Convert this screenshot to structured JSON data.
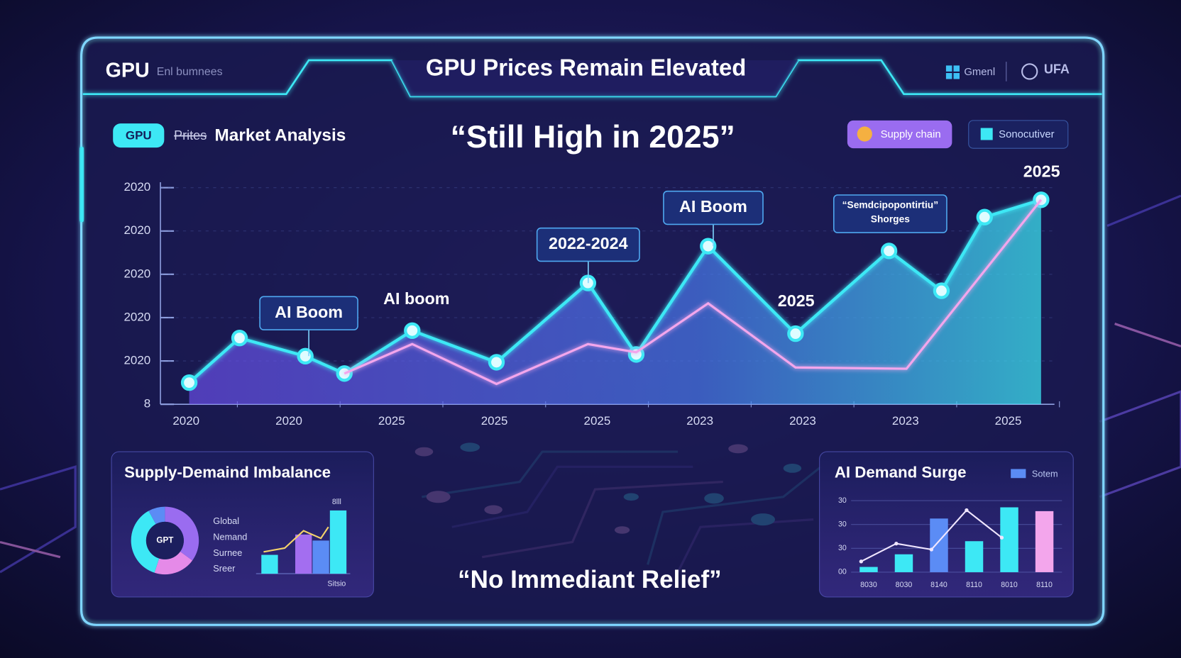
{
  "header": {
    "logo": "GPU",
    "logo_sub": "Enl bumnees",
    "title": "GPU Prices Remain Elevated",
    "menu_1": "Gmenl",
    "menu_2": "UFA"
  },
  "subheader": {
    "badge": "GPU",
    "struck": "Prites",
    "label": "Market Analysis",
    "headline": "“Still High in 2025”",
    "button_1": "Supply chain",
    "button_2": "Sonocutiver"
  },
  "footer_quote": "“No Immediant Relief”",
  "chart_data": [
    {
      "type": "line",
      "area": true,
      "grid": true,
      "series": [
        {
          "color": "#3de8f5",
          "x": [
            0.03,
            0.52,
            1.16,
            1.54,
            2.2,
            3.02,
            3.91,
            4.38,
            5.08,
            5.93,
            6.84,
            7.35,
            7.77,
            8.32
          ],
          "values": [
            0.5,
            1.53,
            1.11,
            0.71,
            1.7,
            0.97,
            2.8,
            1.15,
            3.65,
            1.63,
            3.54,
            2.62,
            4.32,
            4.72
          ]
        },
        {
          "color": "#f3a6ec",
          "x": [
            1.54,
            2.2,
            3.02,
            3.91,
            4.38,
            5.08,
            5.93,
            7.01,
            8.32
          ],
          "values": [
            0.71,
            1.39,
            0.47,
            1.39,
            1.2,
            2.33,
            0.85,
            0.82,
            4.72
          ]
        }
      ],
      "xlim": [
        -0.25,
        8.45
      ],
      "xticks": [
        {
          "value": 0,
          "label": "2020"
        },
        {
          "value": 1,
          "label": "2020"
        },
        {
          "value": 2,
          "label": "2025"
        },
        {
          "value": 3,
          "label": "2025"
        },
        {
          "value": 4,
          "label": "2025"
        },
        {
          "value": 5,
          "label": "2023"
        },
        {
          "value": 6,
          "label": "2023"
        },
        {
          "value": 7,
          "label": "2023"
        },
        {
          "value": 8,
          "label": "2025"
        }
      ],
      "ylim": [
        0,
        5.3
      ],
      "yticks": [
        {
          "value": 0,
          "label": "8"
        },
        {
          "value": 1,
          "label": "2020"
        },
        {
          "value": 2,
          "label": "2020"
        },
        {
          "value": 3,
          "label": "2020"
        },
        {
          "value": 4,
          "label": "2020"
        },
        {
          "value": 5,
          "label": "2020"
        }
      ],
      "annotations": [
        "AI Boom",
        "AI boom",
        "2022-2024",
        "AI Boom",
        "2025",
        "“Semdcipopontirtiu”",
        "Shorges",
        "2025"
      ]
    },
    {
      "type": "pie",
      "donut": true,
      "title": "Supply-Demaind Imbalance",
      "center_label": "GPT",
      "categories": [
        "Global",
        "Nemand",
        "Surnee",
        "Sreer"
      ],
      "values": [
        35,
        20,
        37,
        8
      ],
      "colors": [
        "#9a6cf0",
        "#e58ae8",
        "#3de8f5",
        "#5b8cf5"
      ]
    },
    {
      "type": "bar",
      "top_label": "8lll",
      "x_label": "Sitsio",
      "values": [
        25,
        52,
        44,
        84
      ],
      "colors": [
        "#3de8f5",
        "#a36ef0",
        "#5b8cf5",
        "#3de8f5"
      ],
      "ylim": [
        0,
        100
      ],
      "line": {
        "color": "#f5d36a",
        "values": [
          29,
          34,
          57,
          47,
          62
        ]
      }
    },
    {
      "type": "bar",
      "title": "AI Demand Surge",
      "legend": "Sotem",
      "categories": [
        "8030",
        "8030",
        "8140",
        "8110",
        "8010",
        "8110"
      ],
      "values": [
        0.22,
        0.75,
        2.25,
        1.3,
        2.72,
        2.56
      ],
      "colors": [
        "#3de8f5",
        "#3de8f5",
        "#5b8cf5",
        "#3de8f5",
        "#3de8f5",
        "#f3a6ec"
      ],
      "ylim": [
        0,
        3
      ],
      "yticks": [
        {
          "value": 0,
          "label": "00"
        },
        {
          "value": 1,
          "label": "30"
        },
        {
          "value": 2,
          "label": "30"
        },
        {
          "value": 3,
          "label": "30"
        }
      ],
      "line": {
        "color": "#f0e6ff",
        "values": [
          0.45,
          1.2,
          0.95,
          2.6,
          1.45
        ]
      }
    }
  ]
}
